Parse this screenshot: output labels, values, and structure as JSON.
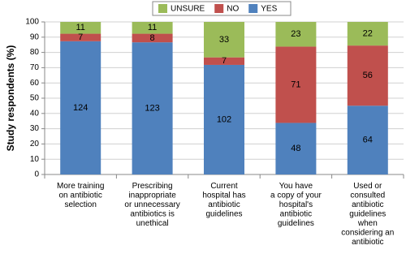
{
  "chart_data": {
    "type": "bar",
    "stacked": "percent",
    "ylabel": "Study respondents (%)",
    "categories": [
      "More training\non antibiotic\nselection",
      "Prescribing\ninappropriate\nor unnecessary\nantibiotics is\nunethical",
      "Current\nhospital has\nantibiotic\nguidelines",
      "You have\na copy of your\nhospital's\nantibiotic\nguidelines",
      "Used or\nconsulted\nantibiotic\nguidelines\nwhen\nconsidering an\nantibiotic"
    ],
    "series": [
      {
        "name": "YES",
        "color": "#4f81bd",
        "values": [
          124,
          123,
          102,
          48,
          64
        ]
      },
      {
        "name": "NO",
        "color": "#c0504d",
        "values": [
          7,
          8,
          7,
          71,
          56
        ]
      },
      {
        "name": "UNSURE",
        "color": "#9bbb59",
        "values": [
          11,
          11,
          33,
          23,
          22
        ]
      }
    ],
    "ylim": [
      0,
      100
    ],
    "yticks": [
      0,
      10,
      20,
      30,
      40,
      50,
      60,
      70,
      80,
      90,
      100
    ],
    "grid": true,
    "legend": "top"
  }
}
